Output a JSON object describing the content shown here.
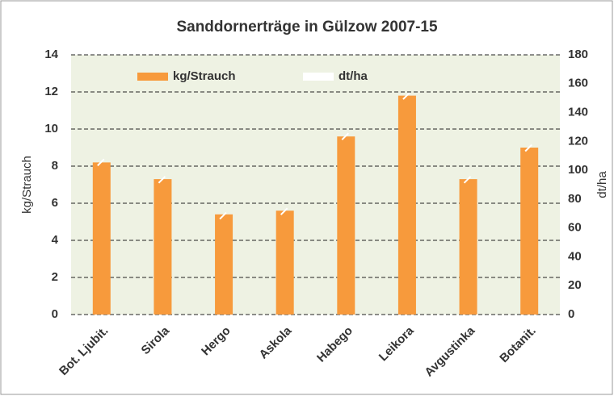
{
  "chart_data": {
    "type": "bar",
    "title": "Sanddornerträge in Gülzow 2007-15",
    "ylabel": "kg/Strauch",
    "y2label": "dt/ha",
    "categories": [
      "Bot. Ljubit.",
      "Sirola",
      "Hergo",
      "Askola",
      "Habego",
      "Leikora",
      "Avgustinka",
      "Botanit."
    ],
    "series": [
      {
        "name": "kg/Strauch",
        "color": "#f79a3c",
        "values": [
          8.2,
          7.3,
          5.4,
          5.6,
          9.6,
          11.8,
          7.3,
          9.0
        ]
      },
      {
        "name": "dt/ha",
        "color": "#ffffff",
        "axis": "y2",
        "values": [
          106,
          94,
          69,
          72,
          124,
          152,
          94,
          116
        ]
      }
    ],
    "ylim": [
      0,
      14
    ],
    "yticks": [
      0,
      2,
      4,
      6,
      8,
      10,
      12,
      14
    ],
    "y2lim": [
      0,
      180
    ],
    "y2ticks": [
      0,
      20,
      40,
      60,
      80,
      100,
      120,
      140,
      160,
      180
    ],
    "grid": true,
    "legend": "top"
  }
}
